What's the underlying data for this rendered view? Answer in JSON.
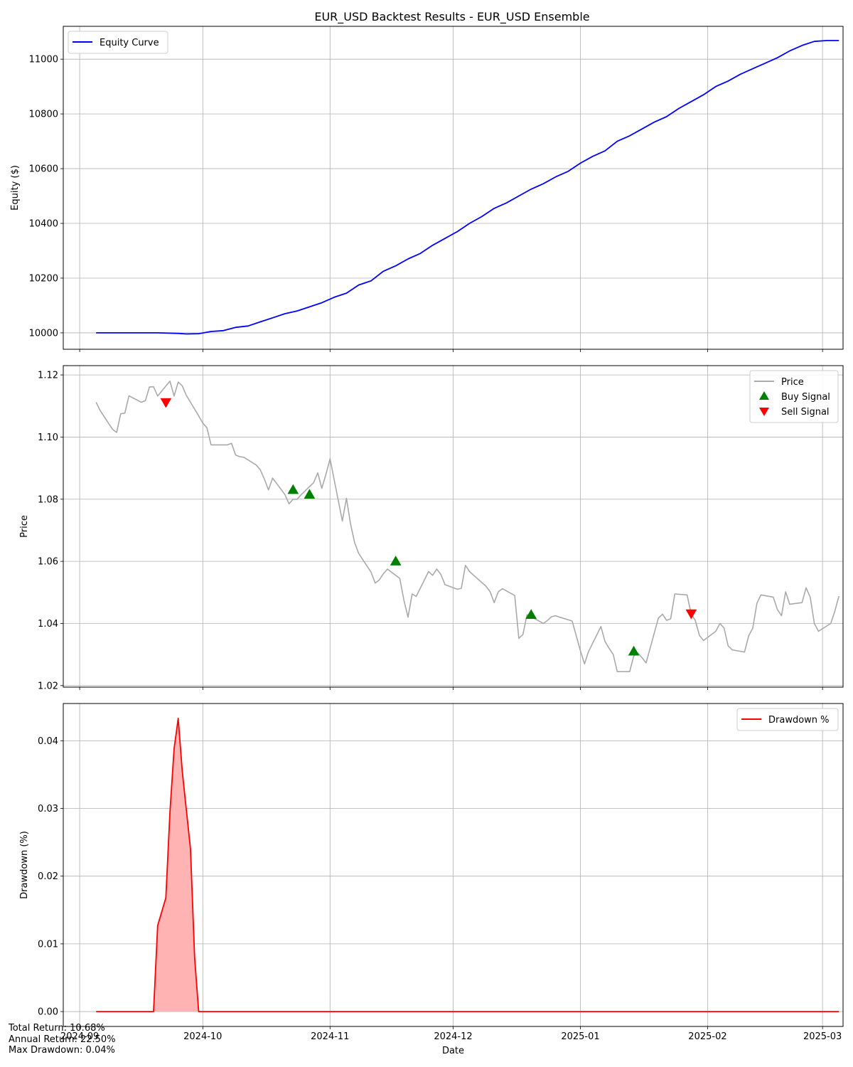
{
  "title": "EUR_USD Backtest Results - EUR_USD Ensemble",
  "stats": {
    "total_return": "Total Return: 10.68%",
    "annual_return": "Annual Return: 22.50%",
    "max_drawdown": "Max Drawdown: 0.04%"
  },
  "colors": {
    "equity": "#0000ff",
    "price": "#a9a9a9",
    "buy": "#008000",
    "sell": "#ff0000",
    "drawdown": "#ff0000",
    "drawdown_fill": "#ffb3b3"
  },
  "chart_data": [
    {
      "type": "line",
      "ylabel": "Equity ($)",
      "xlabel": "",
      "grid": true,
      "legend": {
        "position": "top-left",
        "entries": [
          "Equity Curve"
        ]
      },
      "xlim": [
        "2024-08-28",
        "2025-03-06"
      ],
      "ylim": [
        9940,
        11120
      ],
      "xticks": [
        "2024-09",
        "2024-10",
        "2024-11",
        "2024-12",
        "2025-01",
        "2025-02",
        "2025-03"
      ],
      "yticks": [
        "10000",
        "10200",
        "10400",
        "10600",
        "10800",
        "11000"
      ],
      "series": [
        {
          "name": "Equity Curve",
          "x": [
            "2024-09-05",
            "2024-09-10",
            "2024-09-15",
            "2024-09-20",
            "2024-09-25",
            "2024-09-27",
            "2024-09-30",
            "2024-10-03",
            "2024-10-06",
            "2024-10-09",
            "2024-10-12",
            "2024-10-15",
            "2024-10-18",
            "2024-10-21",
            "2024-10-24",
            "2024-10-27",
            "2024-10-30",
            "2024-11-02",
            "2024-11-05",
            "2024-11-08",
            "2024-11-11",
            "2024-11-14",
            "2024-11-17",
            "2024-11-20",
            "2024-11-23",
            "2024-11-26",
            "2024-11-29",
            "2024-12-02",
            "2024-12-05",
            "2024-12-08",
            "2024-12-11",
            "2024-12-14",
            "2024-12-17",
            "2024-12-20",
            "2024-12-23",
            "2024-12-26",
            "2024-12-29",
            "2025-01-01",
            "2025-01-04",
            "2025-01-07",
            "2025-01-10",
            "2025-01-13",
            "2025-01-16",
            "2025-01-19",
            "2025-01-22",
            "2025-01-25",
            "2025-01-28",
            "2025-01-31",
            "2025-02-03",
            "2025-02-06",
            "2025-02-09",
            "2025-02-12",
            "2025-02-15",
            "2025-02-18",
            "2025-02-21",
            "2025-02-24",
            "2025-02-27",
            "2025-03-02",
            "2025-03-05"
          ],
          "values": [
            10000,
            10000,
            10000,
            10000,
            9998,
            9996,
            9997,
            10005,
            10008,
            10020,
            10025,
            10040,
            10055,
            10070,
            10080,
            10095,
            10110,
            10130,
            10145,
            10175,
            10190,
            10225,
            10245,
            10270,
            10290,
            10320,
            10345,
            10370,
            10400,
            10425,
            10455,
            10475,
            10500,
            10525,
            10545,
            10570,
            10590,
            10620,
            10645,
            10665,
            10700,
            10720,
            10745,
            10770,
            10790,
            10820,
            10845,
            10870,
            10900,
            10920,
            10945,
            10965,
            10985,
            11005,
            11030,
            11050,
            11065,
            11068,
            11068
          ]
        }
      ]
    },
    {
      "type": "line",
      "ylabel": "Price",
      "xlabel": "",
      "grid": true,
      "legend": {
        "position": "top-right",
        "entries": [
          "Price",
          "Buy Signal",
          "Sell Signal"
        ]
      },
      "xlim": [
        "2024-08-28",
        "2025-03-06"
      ],
      "ylim": [
        1.0195,
        1.123
      ],
      "xticks": [
        "2024-09",
        "2024-10",
        "2024-11",
        "2024-12",
        "2025-01",
        "2025-02",
        "2025-03"
      ],
      "yticks": [
        "1.02",
        "1.04",
        "1.06",
        "1.08",
        "1.10",
        "1.12"
      ],
      "series": [
        {
          "name": "Price",
          "x": [
            "2024-09-05",
            "2024-09-06",
            "2024-09-09",
            "2024-09-10",
            "2024-09-11",
            "2024-09-12",
            "2024-09-13",
            "2024-09-16",
            "2024-09-17",
            "2024-09-18",
            "2024-09-19",
            "2024-09-20",
            "2024-09-23",
            "2024-09-24",
            "2024-09-25",
            "2024-09-26",
            "2024-09-27",
            "2024-09-30",
            "2024-10-01",
            "2024-10-02",
            "2024-10-03",
            "2024-10-04",
            "2024-10-07",
            "2024-10-08",
            "2024-10-09",
            "2024-10-10",
            "2024-10-11",
            "2024-10-14",
            "2024-10-15",
            "2024-10-16",
            "2024-10-17",
            "2024-10-18",
            "2024-10-21",
            "2024-10-22",
            "2024-10-23",
            "2024-10-24",
            "2024-10-25",
            "2024-10-28",
            "2024-10-29",
            "2024-10-30",
            "2024-10-31",
            "2024-11-01",
            "2024-11-04",
            "2024-11-05",
            "2024-11-06",
            "2024-11-07",
            "2024-11-08",
            "2024-11-11",
            "2024-11-12",
            "2024-11-13",
            "2024-11-14",
            "2024-11-15",
            "2024-11-18",
            "2024-11-19",
            "2024-11-20",
            "2024-11-21",
            "2024-11-22",
            "2024-11-25",
            "2024-11-26",
            "2024-11-27",
            "2024-11-28",
            "2024-11-29",
            "2024-12-02",
            "2024-12-03",
            "2024-12-04",
            "2024-12-05",
            "2024-12-06",
            "2024-12-09",
            "2024-12-10",
            "2024-12-11",
            "2024-12-12",
            "2024-12-13",
            "2024-12-16",
            "2024-12-17",
            "2024-12-18",
            "2024-12-19",
            "2024-12-20",
            "2024-12-23",
            "2024-12-24",
            "2024-12-25",
            "2024-12-26",
            "2024-12-27",
            "2024-12-30",
            "2024-12-31",
            "2025-01-01",
            "2025-01-02",
            "2025-01-03",
            "2025-01-06",
            "2025-01-07",
            "2025-01-08",
            "2025-01-09",
            "2025-01-10",
            "2025-01-13",
            "2025-01-14",
            "2025-01-15",
            "2025-01-16",
            "2025-01-17",
            "2025-01-20",
            "2025-01-21",
            "2025-01-22",
            "2025-01-23",
            "2025-01-24",
            "2025-01-27",
            "2025-01-28",
            "2025-01-29",
            "2025-01-30",
            "2025-01-31",
            "2025-02-03",
            "2025-02-04",
            "2025-02-05",
            "2025-02-06",
            "2025-02-07",
            "2025-02-10",
            "2025-02-11",
            "2025-02-12",
            "2025-02-13",
            "2025-02-14",
            "2025-02-17",
            "2025-02-18",
            "2025-02-19",
            "2025-02-20",
            "2025-02-21",
            "2025-02-24",
            "2025-02-25",
            "2025-02-26",
            "2025-02-27",
            "2025-02-28",
            "2025-03-03",
            "2025-03-04",
            "2025-03-05"
          ],
          "values": [
            1.1112,
            1.1085,
            1.1025,
            1.1015,
            1.1075,
            1.1077,
            1.1133,
            1.1112,
            1.1117,
            1.1161,
            1.1162,
            1.1132,
            1.118,
            1.1132,
            1.1177,
            1.1165,
            1.1134,
            1.1068,
            1.1045,
            1.103,
            1.0975,
            1.0975,
            1.0975,
            1.098,
            1.0942,
            1.0937,
            1.0935,
            1.091,
            1.0895,
            1.0865,
            1.083,
            1.0868,
            1.0815,
            1.0785,
            1.08,
            1.08,
            1.0815,
            1.0853,
            1.0885,
            1.0835,
            1.088,
            1.093,
            1.073,
            1.0803,
            1.072,
            1.066,
            1.0625,
            1.0565,
            1.053,
            1.054,
            1.056,
            1.0575,
            1.0545,
            1.0475,
            1.042,
            1.0495,
            1.0487,
            1.0567,
            1.0555,
            1.0575,
            1.0558,
            1.0525,
            1.051,
            1.0513,
            1.0587,
            1.0567,
            1.0555,
            1.052,
            1.0502,
            1.0467,
            1.0502,
            1.0512,
            1.049,
            1.0352,
            1.0365,
            1.0428,
            1.0422,
            1.04,
            1.041,
            1.0422,
            1.0425,
            1.042,
            1.0408,
            1.036,
            1.0312,
            1.027,
            1.031,
            1.039,
            1.0342,
            1.032,
            1.03,
            1.0245,
            1.0245,
            1.0295,
            1.0305,
            1.029,
            1.0273,
            1.0417,
            1.043,
            1.041,
            1.0415,
            1.0495,
            1.0492,
            1.043,
            1.041,
            1.0362,
            1.0345,
            1.0375,
            1.04,
            1.0385,
            1.0328,
            1.0315,
            1.0308,
            1.036,
            1.0385,
            1.0465,
            1.0492,
            1.0485,
            1.0445,
            1.0425,
            1.0502,
            1.0462,
            1.0467,
            1.0515,
            1.0485,
            1.04,
            1.0375,
            1.04,
            1.044,
            1.0488
          ]
        }
      ],
      "buy_signals": {
        "name": "Buy Signal",
        "x": [
          "2024-10-23",
          "2024-10-27",
          "2024-11-17",
          "2024-12-20",
          "2025-01-14"
        ],
        "values": [
          1.083,
          1.0815,
          1.06,
          1.0428,
          1.031
        ]
      },
      "sell_signals": {
        "name": "Sell Signal",
        "x": [
          "2024-09-22",
          "2025-01-28"
        ],
        "values": [
          1.1112,
          1.0432
        ]
      }
    },
    {
      "type": "area",
      "ylabel": "Drawdown (%)",
      "xlabel": "Date",
      "grid": true,
      "legend": {
        "position": "top-right",
        "entries": [
          "Drawdown %"
        ]
      },
      "xlim": [
        "2024-08-28",
        "2025-03-06"
      ],
      "ylim": [
        -0.0022,
        0.0455
      ],
      "xticks": [
        "2024-09",
        "2024-10",
        "2024-11",
        "2024-12",
        "2025-01",
        "2025-02",
        "2025-03"
      ],
      "yticks": [
        "0.00",
        "0.01",
        "0.02",
        "0.03",
        "0.04"
      ],
      "series": [
        {
          "name": "Drawdown %",
          "x": [
            "2024-09-05",
            "2024-09-19",
            "2024-09-20",
            "2024-09-22",
            "2024-09-23",
            "2024-09-24",
            "2024-09-25",
            "2024-09-26",
            "2024-09-28",
            "2024-09-29",
            "2024-09-30",
            "2024-10-01",
            "2025-03-05"
          ],
          "values": [
            0,
            0,
            0.0127,
            0.0168,
            0.0295,
            0.0388,
            0.0433,
            0.0355,
            0.024,
            0.008,
            0,
            0,
            0
          ]
        }
      ]
    }
  ]
}
